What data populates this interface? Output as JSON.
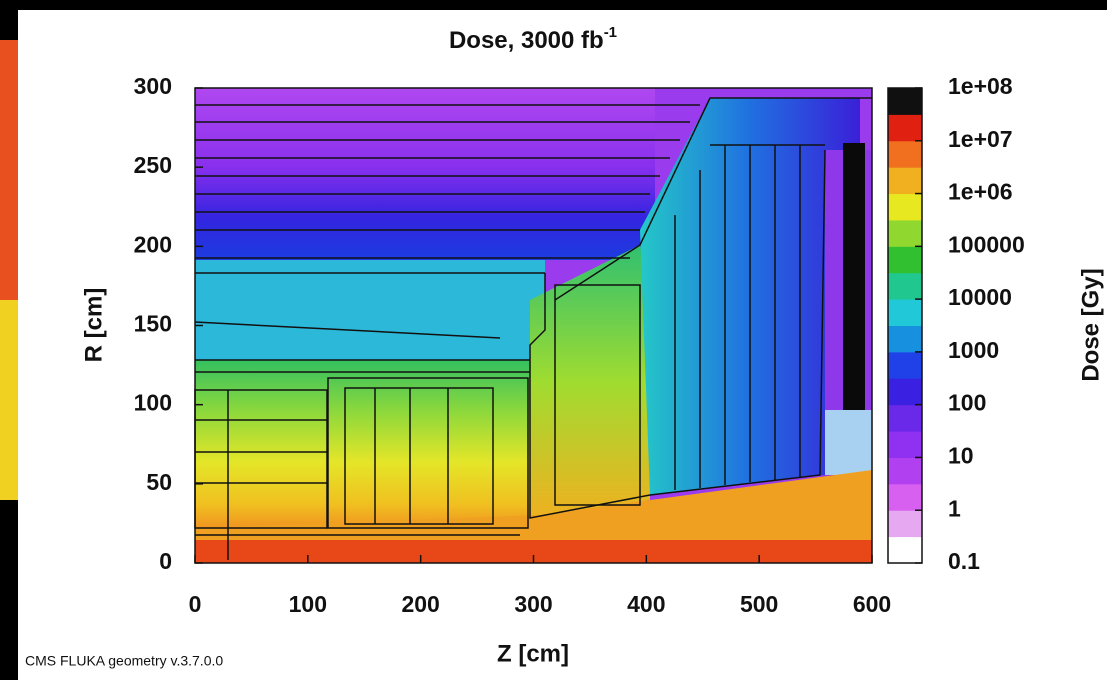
{
  "chart_data": {
    "type": "heatmap",
    "title": "Dose, 3000 fb",
    "title_superscript": "-1",
    "x_label": "Z [cm]",
    "y_label": "R [cm]",
    "xlim": [
      0,
      600
    ],
    "xticks": [
      0,
      100,
      200,
      300,
      400,
      500,
      600
    ],
    "ylim": [
      0,
      300
    ],
    "yticks": [
      0,
      50,
      100,
      150,
      200,
      250,
      300
    ],
    "colorbar": {
      "label": "Dose [Gy]",
      "log": true,
      "lim": [
        0.1,
        100000000
      ],
      "ticks": [
        0.1,
        1,
        10,
        100,
        1000,
        10000,
        100000,
        {
          "value": 1000000,
          "label": "1e+06"
        },
        {
          "value": 10000000,
          "label": "1e+07"
        },
        {
          "value": 100000000,
          "label": "1e+08"
        }
      ],
      "colors": [
        "#ffffff",
        "#e6a8f0",
        "#d860f0",
        "#b040f0",
        "#9030f0",
        "#6a28e8",
        "#3a20e0",
        "#2040e8",
        "#1890e0",
        "#20c8d8",
        "#20c890",
        "#30c030",
        "#90d830",
        "#e8e820",
        "#f0b020",
        "#f07020",
        "#e02010",
        "#101010"
      ]
    },
    "footer": "CMS FLUKA geometry v.3.7.0.0"
  }
}
